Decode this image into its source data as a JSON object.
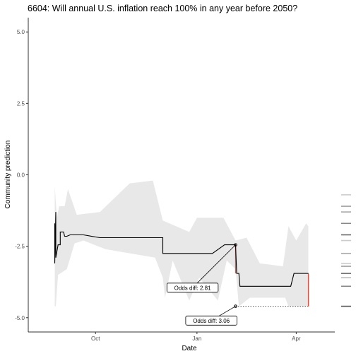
{
  "chart_data": {
    "type": "line",
    "title": "6604: Will annual U.S. inflation reach 100% in any year before 2050?",
    "xlabel": "Date",
    "ylabel": "Community prediction",
    "x_type": "date",
    "xlim": [
      "2022-08-01",
      "2023-05-06"
    ],
    "ylim": [
      -5.5,
      5.5
    ],
    "x_ticks": [
      {
        "date": "2022-10-01",
        "label": "Oct"
      },
      {
        "date": "2023-01-01",
        "label": "Jan"
      },
      {
        "date": "2023-04-01",
        "label": "Apr"
      }
    ],
    "y_ticks": [
      {
        "value": 5.0,
        "label": "5.0"
      },
      {
        "value": 2.5,
        "label": "2.5"
      },
      {
        "value": 0.0,
        "label": "0.0"
      },
      {
        "value": -2.5,
        "label": "-2.5"
      },
      {
        "value": -5.0,
        "label": "-5.0"
      }
    ],
    "grid": false,
    "colors": {
      "line": "#000000",
      "band": "#e8e8e8",
      "odds_diff": "#e8473b",
      "axis": "#333333",
      "rug": "#555555"
    },
    "series": [
      {
        "values": [
          {
            "x": "2022-08-25",
            "y": -1.7
          },
          {
            "x": "2022-08-25",
            "y": -3.1
          },
          {
            "x": "2022-08-26",
            "y": -1.3
          },
          {
            "x": "2022-08-26",
            "y": -2.9
          },
          {
            "x": "2022-08-28",
            "y": -2.45
          },
          {
            "x": "2022-08-30",
            "y": -2.45
          },
          {
            "x": "2022-08-30",
            "y": -2.0
          },
          {
            "x": "2022-09-02",
            "y": -2.0
          },
          {
            "x": "2022-09-03",
            "y": -2.15
          },
          {
            "x": "2022-09-05",
            "y": -2.15
          },
          {
            "x": "2022-09-08",
            "y": -2.1
          },
          {
            "x": "2022-09-20",
            "y": -2.1
          },
          {
            "x": "2022-10-05",
            "y": -2.2
          },
          {
            "x": "2022-12-01",
            "y": -2.2
          },
          {
            "x": "2022-12-01",
            "y": -2.75
          },
          {
            "x": "2023-01-15",
            "y": -2.75
          },
          {
            "x": "2023-01-26",
            "y": -2.45
          },
          {
            "x": "2023-02-05",
            "y": -2.45
          },
          {
            "x": "2023-02-06",
            "y": -3.45
          },
          {
            "x": "2023-02-08",
            "y": -3.45
          },
          {
            "x": "2023-02-09",
            "y": -3.9
          },
          {
            "x": "2023-03-27",
            "y": -3.9
          },
          {
            "x": "2023-03-30",
            "y": -3.45
          },
          {
            "x": "2023-04-12",
            "y": -3.45
          }
        ]
      }
    ],
    "band": {
      "upper": [
        {
          "x": "2022-08-25",
          "y": -0.4
        },
        {
          "x": "2022-08-27",
          "y": -1.5
        },
        {
          "x": "2022-08-29",
          "y": -1.1
        },
        {
          "x": "2022-09-03",
          "y": -1.1
        },
        {
          "x": "2022-09-06",
          "y": -0.5
        },
        {
          "x": "2022-09-14",
          "y": -1.4
        },
        {
          "x": "2022-10-05",
          "y": -1.3
        },
        {
          "x": "2022-11-01",
          "y": -0.3
        },
        {
          "x": "2022-11-22",
          "y": -0.2
        },
        {
          "x": "2022-12-01",
          "y": -1.6
        },
        {
          "x": "2022-12-25",
          "y": -2.0
        },
        {
          "x": "2023-01-01",
          "y": -1.5
        },
        {
          "x": "2023-01-25",
          "y": -1.5
        },
        {
          "x": "2023-02-05",
          "y": -2.3
        },
        {
          "x": "2023-02-15",
          "y": -2.2
        },
        {
          "x": "2023-02-27",
          "y": -3.1
        },
        {
          "x": "2023-03-20",
          "y": -3.2
        },
        {
          "x": "2023-03-25",
          "y": -1.8
        },
        {
          "x": "2023-04-01",
          "y": -2.3
        },
        {
          "x": "2023-04-10",
          "y": -1.7
        },
        {
          "x": "2023-04-12",
          "y": -1.8
        }
      ],
      "lower": [
        {
          "x": "2023-04-12",
          "y": -4.6
        },
        {
          "x": "2023-03-25",
          "y": -4.6
        },
        {
          "x": "2023-03-22",
          "y": -4.3
        },
        {
          "x": "2023-02-18",
          "y": -4.3
        },
        {
          "x": "2023-02-08",
          "y": -4.6
        },
        {
          "x": "2023-02-05",
          "y": -3.3
        },
        {
          "x": "2023-01-28",
          "y": -3.0
        },
        {
          "x": "2023-01-20",
          "y": -4.4
        },
        {
          "x": "2023-01-03",
          "y": -3.6
        },
        {
          "x": "2022-12-25",
          "y": -4.4
        },
        {
          "x": "2022-12-10",
          "y": -3.0
        },
        {
          "x": "2022-12-03",
          "y": -4.3
        },
        {
          "x": "2022-12-01",
          "y": -3.6
        },
        {
          "x": "2022-11-24",
          "y": -2.9
        },
        {
          "x": "2022-10-10",
          "y": -2.6
        },
        {
          "x": "2022-09-20",
          "y": -2.3
        },
        {
          "x": "2022-09-12",
          "y": -2.4
        },
        {
          "x": "2022-09-05",
          "y": -3.3
        },
        {
          "x": "2022-08-28",
          "y": -3.5
        },
        {
          "x": "2022-08-26",
          "y": -4.6
        },
        {
          "x": "2022-08-25",
          "y": -4.6
        }
      ]
    },
    "points": [
      {
        "x": "2023-02-05",
        "y": -2.45
      },
      {
        "x": "2023-02-05",
        "y": -4.6
      }
    ],
    "odds_diff_segments": [
      {
        "x": "2023-02-05",
        "y_from": -2.45,
        "y_to": -3.45
      },
      {
        "x": "2023-04-12",
        "y_from": -3.45,
        "y_to": -4.6
      }
    ],
    "dotted_segment": {
      "x_from": "2023-02-05",
      "x_to": "2023-04-12",
      "y": -4.6
    },
    "annotations": [
      {
        "label": "Odds diff: 2.81",
        "anchor_x": "2023-02-05",
        "anchor_y": -2.45,
        "label_x": "2022-12-28",
        "label_y": -3.95
      },
      {
        "label": "Odds diff: 3.06",
        "anchor_x": "2023-02-05",
        "anchor_y": -4.6,
        "label_x": "2023-01-14",
        "label_y": -5.1
      }
    ],
    "rug": [
      {
        "y": -0.7,
        "weight": 0.3
      },
      {
        "y": -1.1,
        "weight": 0.6
      },
      {
        "y": -1.3,
        "weight": 0.5
      },
      {
        "y": -1.7,
        "weight": 0.7
      },
      {
        "y": -2.1,
        "weight": 0.9
      },
      {
        "y": -2.3,
        "weight": 0.3
      },
      {
        "y": -2.75,
        "weight": 0.5
      },
      {
        "y": -3.1,
        "weight": 0.3
      },
      {
        "y": -3.2,
        "weight": 0.6
      },
      {
        "y": -3.45,
        "weight": 0.9
      },
      {
        "y": -3.6,
        "weight": 0.4
      },
      {
        "y": -3.9,
        "weight": 0.7
      },
      {
        "y": -4.6,
        "weight": 1.0
      }
    ]
  }
}
